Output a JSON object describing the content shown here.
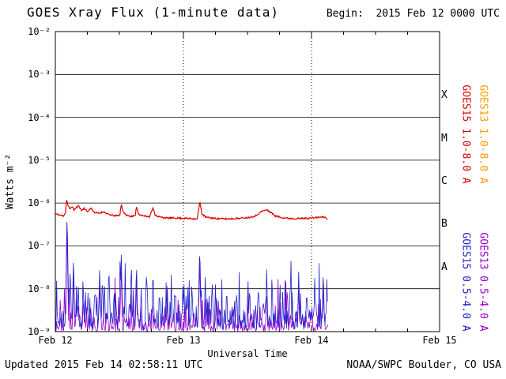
{
  "header": {
    "title": "GOES Xray Flux (1-minute data)",
    "begin_label": "Begin:  2015 Feb 12 0000 UTC"
  },
  "axes": {
    "y_label": "Watts m⁻²",
    "x_label": "Universal Time",
    "y_ticks": [
      "10⁻²",
      "10⁻³",
      "10⁻⁴",
      "10⁻⁵",
      "10⁻⁶",
      "10⁻⁷",
      "10⁻⁸",
      "10⁻⁹"
    ],
    "x_ticks": [
      "Feb 12",
      "Feb 13",
      "Feb 14",
      "Feb 15"
    ]
  },
  "flare_classes": [
    "X",
    "M",
    "C",
    "B",
    "A"
  ],
  "legend": [
    {
      "label": "GOES15 1.0-8.0 A",
      "color": "#dd0000"
    },
    {
      "label": "GOES13 1.0-8.0 A",
      "color": "#ff9900"
    },
    {
      "label": "GOES15 0.5-4.0 A",
      "color": "#2323cc"
    },
    {
      "label": "GOES13 0.5-4.0 A",
      "color": "#9900cc"
    }
  ],
  "footer": {
    "updated": "Updated 2015 Feb 14 02:58:11 UTC",
    "credit": "NOAA/SWPC Boulder, CO USA"
  },
  "chart_data": {
    "type": "line",
    "title": "GOES Xray Flux (1-minute data)",
    "xlabel": "Universal Time",
    "ylabel": "Watts m-2",
    "x_tick_labels": [
      "Feb 12",
      "Feb 13",
      "Feb 14",
      "Feb 15"
    ],
    "x_total_hours": 72,
    "data_end_hours": 51.1,
    "y_log10_range": [
      -9,
      -2
    ],
    "grid": {
      "horizontal": "solid line each decade",
      "vertical": "dotted line each day"
    },
    "legend_position": "right, rotated 90deg",
    "flare_class_bands": [
      {
        "class": "X",
        "log10_range": [
          -4,
          -3
        ]
      },
      {
        "class": "M",
        "log10_range": [
          -5,
          -4
        ]
      },
      {
        "class": "C",
        "log10_range": [
          -6,
          -5
        ]
      },
      {
        "class": "B",
        "log10_range": [
          -7,
          -6
        ]
      },
      {
        "class": "A",
        "log10_range": [
          -8,
          -7
        ]
      }
    ],
    "series": [
      {
        "name": "GOES13 0.5-4.0 A",
        "color": "#9900cc",
        "render": "noise",
        "seed": 23,
        "baseline_log": -9.0,
        "noise_amp": 0.24,
        "step_hours": 0.13,
        "spikes": [
          [
            2.2,
            -6.6,
            0.3
          ],
          [
            3.4,
            -7.5,
            0.2
          ],
          [
            8.3,
            -7.8,
            0.2
          ],
          [
            12.35,
            -7.6,
            0.25
          ],
          [
            15.2,
            -7.7,
            0.2
          ],
          [
            27.05,
            -7.3,
            0.25
          ],
          [
            39.6,
            -7.9,
            0.2
          ],
          [
            45.6,
            -7.85,
            0.2
          ],
          [
            50.2,
            -7.8,
            0.2
          ]
        ]
      },
      {
        "name": "GOES15 0.5-4.0 A",
        "color": "#2323cc",
        "render": "noise",
        "seed": 7,
        "baseline_log": -8.95,
        "noise_amp": 0.3,
        "step_hours": 0.12,
        "spikes": [
          [
            2.2,
            -6.12,
            0.35
          ],
          [
            2.8,
            -7.4,
            0.25
          ],
          [
            3.4,
            -7.1,
            0.25
          ],
          [
            4.3,
            -7.85,
            0.2
          ],
          [
            5.2,
            -7.55,
            0.2
          ],
          [
            6.1,
            -8.0,
            0.2
          ],
          [
            7.5,
            -7.8,
            0.2
          ],
          [
            8.3,
            -7.45,
            0.25
          ],
          [
            9.2,
            -7.7,
            0.2
          ],
          [
            10.1,
            -7.55,
            0.2
          ],
          [
            11.0,
            -7.9,
            0.2
          ],
          [
            12.35,
            -7.15,
            0.3
          ],
          [
            13.1,
            -7.8,
            0.2
          ],
          [
            14.2,
            -7.5,
            0.2
          ],
          [
            15.2,
            -7.3,
            0.25
          ],
          [
            16.1,
            -7.9,
            0.2
          ],
          [
            17.2,
            -7.6,
            0.2
          ],
          [
            18.3,
            -7.45,
            0.25
          ],
          [
            19.5,
            -7.9,
            0.2
          ],
          [
            21.0,
            -8.0,
            0.2
          ],
          [
            22.5,
            -7.85,
            0.2
          ],
          [
            24.1,
            -7.8,
            0.2
          ],
          [
            25.6,
            -7.7,
            0.2
          ],
          [
            27.05,
            -6.9,
            0.3
          ],
          [
            28.1,
            -7.6,
            0.2
          ],
          [
            30.0,
            -7.9,
            0.2
          ],
          [
            32.1,
            -7.85,
            0.2
          ],
          [
            34.0,
            -7.95,
            0.2
          ],
          [
            36.1,
            -7.7,
            0.2
          ],
          [
            38.0,
            -7.85,
            0.2
          ],
          [
            39.6,
            -7.55,
            0.25
          ],
          [
            40.6,
            -7.5,
            0.2
          ],
          [
            42.1,
            -7.8,
            0.2
          ],
          [
            44.0,
            -7.7,
            0.2
          ],
          [
            45.6,
            -7.6,
            0.25
          ],
          [
            47.1,
            -7.9,
            0.2
          ],
          [
            48.6,
            -7.75,
            0.2
          ],
          [
            50.2,
            -7.5,
            0.25
          ],
          [
            50.9,
            -7.65,
            0.2
          ]
        ]
      },
      {
        "name": "GOES15 1.0-8.0 A",
        "color": "#dd0000",
        "render": "anchors",
        "seed": 11,
        "step_hours": 0.1,
        "jitter": 0.035,
        "anchors": [
          [
            0,
            -6.25
          ],
          [
            0.8,
            -6.28
          ],
          [
            1.5,
            -6.3
          ],
          [
            1.9,
            -6.22
          ],
          [
            2.1,
            -5.92
          ],
          [
            2.35,
            -6.05
          ],
          [
            2.7,
            -6.14
          ],
          [
            3.1,
            -6.08
          ],
          [
            3.5,
            -6.16
          ],
          [
            4.0,
            -6.1
          ],
          [
            4.4,
            -6.06
          ],
          [
            4.9,
            -6.18
          ],
          [
            5.4,
            -6.12
          ],
          [
            6.0,
            -6.2
          ],
          [
            6.7,
            -6.12
          ],
          [
            7.3,
            -6.22
          ],
          [
            8.2,
            -6.24
          ],
          [
            9.0,
            -6.2
          ],
          [
            10.0,
            -6.27
          ],
          [
            11.2,
            -6.3
          ],
          [
            12.1,
            -6.28
          ],
          [
            12.35,
            -6.02
          ],
          [
            12.7,
            -6.2
          ],
          [
            13.2,
            -6.28
          ],
          [
            14.2,
            -6.31
          ],
          [
            15.0,
            -6.3
          ],
          [
            15.2,
            -6.08
          ],
          [
            15.6,
            -6.26
          ],
          [
            16.6,
            -6.3
          ],
          [
            17.6,
            -6.32
          ],
          [
            18.3,
            -6.12
          ],
          [
            18.7,
            -6.28
          ],
          [
            19.6,
            -6.33
          ],
          [
            21.0,
            -6.35
          ],
          [
            23.0,
            -6.35
          ],
          [
            25.0,
            -6.36
          ],
          [
            26.6,
            -6.37
          ],
          [
            27.05,
            -5.98
          ],
          [
            27.5,
            -6.26
          ],
          [
            28.2,
            -6.33
          ],
          [
            30.0,
            -6.36
          ],
          [
            32.0,
            -6.37
          ],
          [
            34.0,
            -6.36
          ],
          [
            36.0,
            -6.34
          ],
          [
            37.5,
            -6.3
          ],
          [
            38.6,
            -6.2
          ],
          [
            39.6,
            -6.16
          ],
          [
            40.4,
            -6.22
          ],
          [
            41.2,
            -6.3
          ],
          [
            42.5,
            -6.34
          ],
          [
            44.0,
            -6.36
          ],
          [
            46.0,
            -6.36
          ],
          [
            48.0,
            -6.35
          ],
          [
            49.5,
            -6.33
          ],
          [
            50.5,
            -6.33
          ],
          [
            51.1,
            -6.38
          ]
        ]
      }
    ]
  }
}
